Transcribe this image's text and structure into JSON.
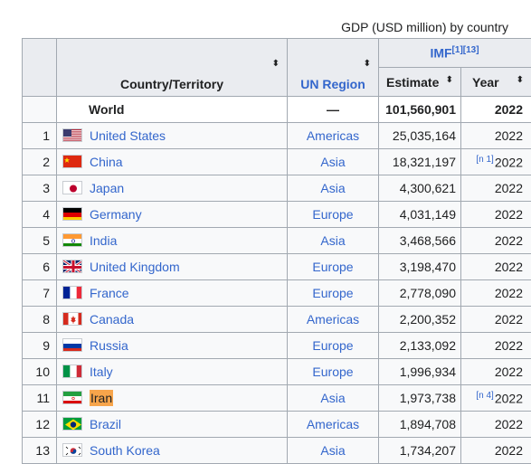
{
  "caption": "GDP (USD million) by country",
  "headers": {
    "country": "Country/Territory",
    "region": "UN Region",
    "imf": "IMF",
    "imf_refs": "[1][13]",
    "estimate": "Estimate",
    "year": "Year",
    "sort_glyph": "⬍"
  },
  "world": {
    "name": "World",
    "region": "—",
    "estimate": "101,560,901",
    "year": "2022"
  },
  "rows": [
    {
      "rank": "1",
      "country": "United States",
      "region": "Americas",
      "estimate": "25,035,164",
      "year": "2022",
      "flag": "us-flag-icon"
    },
    {
      "rank": "2",
      "country": "China",
      "region": "Asia",
      "estimate": "18,321,197",
      "year": "2022",
      "note": "[n 1]",
      "flag": "china-flag-icon"
    },
    {
      "rank": "3",
      "country": "Japan",
      "region": "Asia",
      "estimate": "4,300,621",
      "year": "2022",
      "flag": "japan-flag-icon"
    },
    {
      "rank": "4",
      "country": "Germany",
      "region": "Europe",
      "estimate": "4,031,149",
      "year": "2022",
      "flag": "germany-flag-icon"
    },
    {
      "rank": "5",
      "country": "India",
      "region": "Asia",
      "estimate": "3,468,566",
      "year": "2022",
      "flag": "india-flag-icon"
    },
    {
      "rank": "6",
      "country": "United Kingdom",
      "region": "Europe",
      "estimate": "3,198,470",
      "year": "2022",
      "flag": "uk-flag-icon"
    },
    {
      "rank": "7",
      "country": "France",
      "region": "Europe",
      "estimate": "2,778,090",
      "year": "2022",
      "flag": "france-flag-icon"
    },
    {
      "rank": "8",
      "country": "Canada",
      "region": "Americas",
      "estimate": "2,200,352",
      "year": "2022",
      "flag": "canada-flag-icon"
    },
    {
      "rank": "9",
      "country": "Russia",
      "region": "Europe",
      "estimate": "2,133,092",
      "year": "2022",
      "flag": "russia-flag-icon"
    },
    {
      "rank": "10",
      "country": "Italy",
      "region": "Europe",
      "estimate": "1,996,934",
      "year": "2022",
      "flag": "italy-flag-icon"
    },
    {
      "rank": "11",
      "country": "Iran",
      "region": "Asia",
      "estimate": "1,973,738",
      "year": "2022",
      "note": "[n 4]",
      "flag": "iran-flag-icon",
      "highlight": true
    },
    {
      "rank": "12",
      "country": "Brazil",
      "region": "Americas",
      "estimate": "1,894,708",
      "year": "2022",
      "flag": "brazil-flag-icon"
    },
    {
      "rank": "13",
      "country": "South Korea",
      "region": "Asia",
      "estimate": "1,734,207",
      "year": "2022",
      "flag": "south-korea-flag-icon"
    }
  ],
  "colors": {
    "link": "#3366cc",
    "header_bg": "#eaecf0",
    "border": "#a2a9b1",
    "highlight": "#f7a54b"
  }
}
